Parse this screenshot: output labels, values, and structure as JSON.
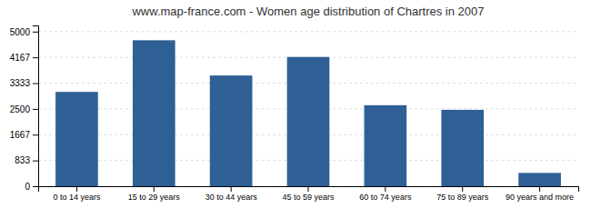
{
  "chart_data": {
    "type": "bar",
    "title": "www.map-france.com - Women age distribution of Chartres in 2007",
    "categories": [
      "0 to 14 years",
      "15 to 29 years",
      "30 to 44 years",
      "45 to 59 years",
      "60 to 74 years",
      "75 to 89 years",
      "90 years and more"
    ],
    "values": [
      3050,
      4720,
      3580,
      4180,
      2620,
      2470,
      430
    ],
    "color": "#2e6096",
    "ylim": [
      0,
      5200
    ],
    "yticks": [
      0,
      833,
      1667,
      2500,
      3333,
      4167,
      5000
    ],
    "grid": true
  }
}
